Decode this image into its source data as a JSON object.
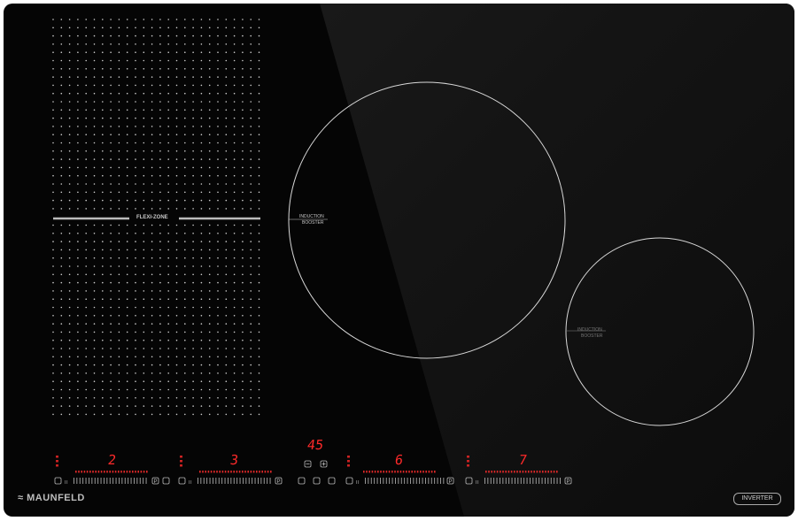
{
  "brand": "MAUNFELD",
  "badge": "INVERTER",
  "flexi_label": "FLEXI-ZONE",
  "booster_zones": [
    {
      "line1": "INDUCTION",
      "line2": "BOOSTER"
    },
    {
      "line1": "INDUCTION",
      "line2": "BOOSTER"
    }
  ],
  "timer_display": "45",
  "zones": [
    {
      "power": "2"
    },
    {
      "power": "3"
    },
    {
      "power": "6"
    },
    {
      "power": "7"
    }
  ],
  "colors": {
    "display": "#ff2a2a",
    "glass": "#050505",
    "lines": "#d0d0d0"
  }
}
